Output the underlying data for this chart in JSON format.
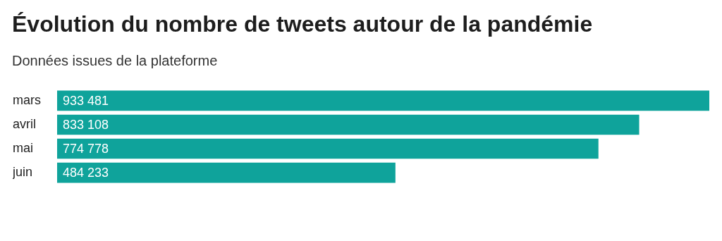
{
  "chart_data": {
    "type": "bar",
    "orientation": "horizontal",
    "title": "Évolution du nombre de tweets autour de la pandémie",
    "subtitle": "Données issues de la plateforme",
    "categories": [
      "mars",
      "avril",
      "mai",
      "juin"
    ],
    "values": [
      933481,
      833108,
      774778,
      484233
    ],
    "value_labels": [
      "933 481",
      "833 108",
      "774 778",
      "484 233"
    ],
    "color": "#0fa39b",
    "xlim": [
      0,
      933481
    ],
    "tick_labels": "y",
    "legend": false
  }
}
